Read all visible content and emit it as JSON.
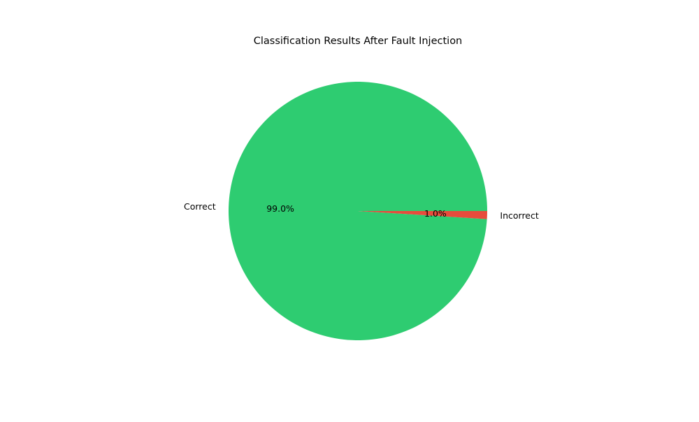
{
  "chart_data": {
    "type": "pie",
    "title": "Classification Results After Fault Injection",
    "slices": [
      {
        "label": "Correct",
        "value": 99.0,
        "pct_label": "99.0%",
        "color": "#2ecc71"
      },
      {
        "label": "Incorrect",
        "value": 1.0,
        "pct_label": "1.0%",
        "color": "#e74c3c"
      }
    ],
    "start_angle_deg": 0,
    "direction": "counterclockwise",
    "legend": "none"
  }
}
